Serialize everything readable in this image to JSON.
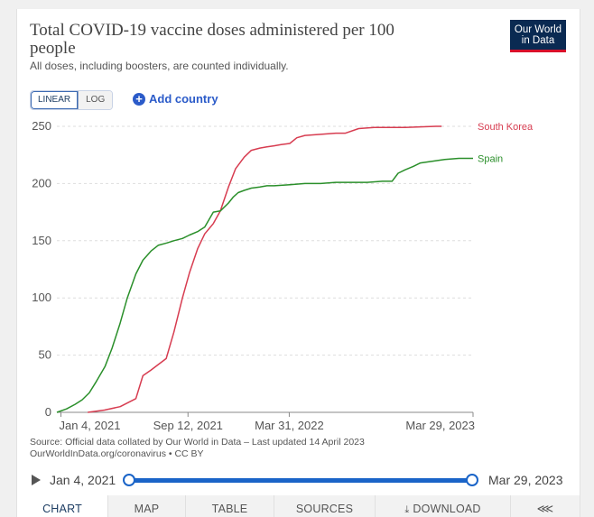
{
  "header": {
    "title": "Total COVID-19 vaccine doses administered per 100 people",
    "subtitle": "All doses, including boosters, are counted individually.",
    "logo_line1": "Our World",
    "logo_line2": "in Data"
  },
  "controls": {
    "linear_label": "LINEAR",
    "log_label": "LOG",
    "add_country_label": "Add country"
  },
  "colors": {
    "south_korea": "#d73c50",
    "spain": "#2a8f2a",
    "accent": "#1a64c8"
  },
  "chart_data": {
    "type": "line",
    "xlabel": "",
    "ylabel": "",
    "ylim": [
      0,
      250
    ],
    "yticks": [
      0,
      50,
      100,
      150,
      200,
      250
    ],
    "xlim": [
      "2020-12-27",
      "2023-03-29"
    ],
    "xticks": [
      "Jan 4, 2021",
      "Sep 12, 2021",
      "Mar 31, 2022",
      "Mar 29, 2023"
    ],
    "xtick_dates": [
      "2021-01-04",
      "2021-09-12",
      "2022-03-31",
      "2023-03-29"
    ],
    "grid": true,
    "legend": "right, labels at line ends",
    "series": [
      {
        "name": "South Korea",
        "x": [
          "2021-02-26",
          "2021-03-31",
          "2021-05-01",
          "2021-06-01",
          "2021-06-15",
          "2021-07-01",
          "2021-07-31",
          "2021-08-15",
          "2021-09-01",
          "2021-09-15",
          "2021-10-01",
          "2021-10-15",
          "2021-11-01",
          "2021-11-15",
          "2021-12-01",
          "2021-12-15",
          "2022-01-01",
          "2022-01-15",
          "2022-02-01",
          "2022-02-15",
          "2022-03-01",
          "2022-03-15",
          "2022-04-01",
          "2022-04-15",
          "2022-05-01",
          "2022-06-01",
          "2022-07-01",
          "2022-07-20",
          "2022-08-15",
          "2022-09-15",
          "2022-10-15",
          "2022-11-15",
          "2022-12-15",
          "2023-01-15",
          "2023-01-26"
        ],
        "y": [
          0,
          2,
          5,
          12,
          32,
          37,
          47,
          70,
          100,
          122,
          143,
          156,
          165,
          176,
          197,
          213,
          223,
          229,
          231,
          232,
          233,
          234,
          235,
          240,
          242,
          243,
          244,
          244,
          248,
          249,
          249,
          249,
          249.5,
          250,
          250
        ]
      },
      {
        "name": "Spain",
        "x": [
          "2020-12-27",
          "2021-01-15",
          "2021-02-01",
          "2021-02-15",
          "2021-03-01",
          "2021-03-15",
          "2021-04-01",
          "2021-04-15",
          "2021-05-01",
          "2021-05-15",
          "2021-06-01",
          "2021-06-15",
          "2021-07-01",
          "2021-07-15",
          "2021-08-01",
          "2021-08-15",
          "2021-09-01",
          "2021-09-15",
          "2021-10-01",
          "2021-10-15",
          "2021-11-01",
          "2021-11-15",
          "2021-12-01",
          "2021-12-10",
          "2021-12-20",
          "2022-01-01",
          "2022-01-15",
          "2022-02-01",
          "2022-02-15",
          "2022-03-01",
          "2022-04-01",
          "2022-05-01",
          "2022-06-01",
          "2022-07-01",
          "2022-08-01",
          "2022-09-01",
          "2022-10-01",
          "2022-10-20",
          "2022-11-01",
          "2022-11-15",
          "2022-12-01",
          "2022-12-15",
          "2023-01-01",
          "2023-02-01",
          "2023-03-01",
          "2023-03-29"
        ],
        "y": [
          0,
          3,
          7,
          11,
          17,
          27,
          40,
          56,
          78,
          100,
          121,
          133,
          141,
          146,
          148,
          150,
          152,
          155,
          158,
          162,
          175,
          176,
          183,
          188,
          192,
          194,
          196,
          197,
          198,
          198,
          199,
          200,
          200,
          201,
          201,
          201,
          202,
          202,
          209,
          212,
          215,
          218,
          219,
          221,
          222,
          222
        ]
      }
    ]
  },
  "footer": {
    "source_line1": "Source: Official data collated by Our World in Data – Last updated 14 April 2023",
    "source_line2": "OurWorldInData.org/coronavirus • CC BY"
  },
  "timeline": {
    "start_label": "Jan 4, 2021",
    "end_label": "Mar 29, 2023"
  },
  "tabs": [
    {
      "label": "CHART"
    },
    {
      "label": "MAP"
    },
    {
      "label": "TABLE"
    },
    {
      "label": "SOURCES"
    },
    {
      "label": "DOWNLOAD"
    }
  ]
}
